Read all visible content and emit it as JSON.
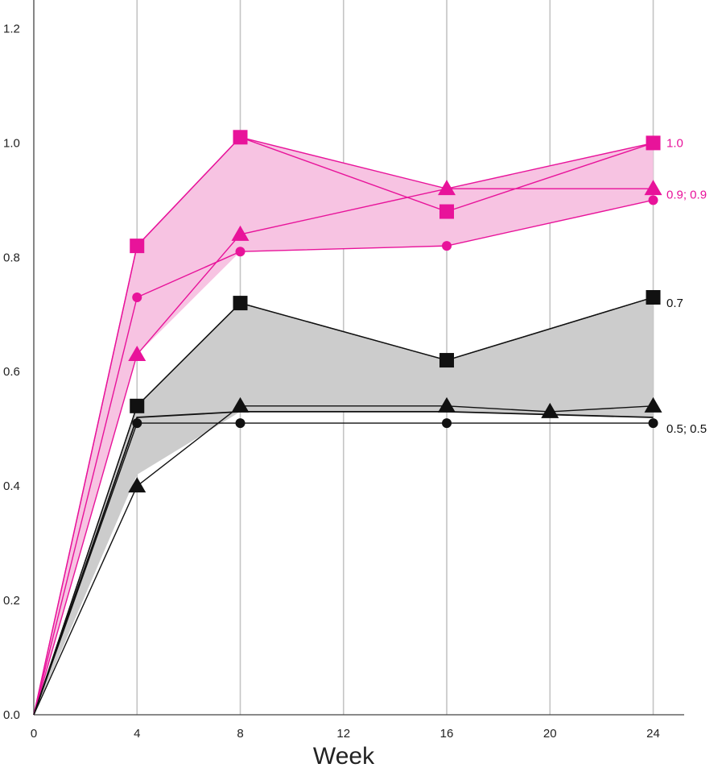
{
  "chart_data": {
    "type": "line",
    "title": "",
    "xlabel": "Week",
    "ylabel": "",
    "xlim": [
      0,
      25.2
    ],
    "ylim": [
      0,
      1.25
    ],
    "x_ticks": [
      0,
      4,
      8,
      12,
      16,
      20,
      24
    ],
    "x_tick_labels": [
      "0",
      "4",
      "8",
      "12",
      "16",
      "20",
      "24"
    ],
    "y_ticks": [
      0,
      0.2,
      0.4,
      0.6,
      0.8,
      1.0,
      1.2
    ],
    "y_tick_labels": [
      "0.0",
      "0.2",
      "0.4",
      "0.6",
      "0.8",
      "1.0",
      "1.2"
    ],
    "grid": "vertical",
    "colors": {
      "pink": "#e8139a",
      "pink_fill": "#f7c3e2",
      "black": "#111111",
      "gray_fill": "#cccccc",
      "grid": "#c4c4c4"
    },
    "bands": [
      {
        "color": "pink",
        "upper": [
          [
            0,
            0
          ],
          [
            4,
            0.82
          ],
          [
            8,
            1.01
          ],
          [
            16,
            0.92
          ],
          [
            24,
            1.0
          ]
        ],
        "lower": [
          [
            0,
            0
          ],
          [
            4,
            0.63
          ],
          [
            8,
            0.81
          ],
          [
            16,
            0.82
          ],
          [
            24,
            0.9
          ]
        ]
      },
      {
        "color": "gray",
        "upper": [
          [
            0,
            0
          ],
          [
            4,
            0.54
          ],
          [
            8,
            0.72
          ],
          [
            16,
            0.62
          ],
          [
            24,
            0.73
          ]
        ],
        "lower": [
          [
            0,
            0
          ],
          [
            4,
            0.42
          ],
          [
            8,
            0.53
          ],
          [
            16,
            0.53
          ],
          [
            24,
            0.52
          ]
        ]
      }
    ],
    "series": [
      {
        "color": "pink",
        "marker": "square",
        "x": [
          0,
          4,
          8,
          16,
          24
        ],
        "y": [
          0,
          0.82,
          1.01,
          0.88,
          1.0
        ]
      },
      {
        "color": "pink",
        "marker": "triangle",
        "x": [
          0,
          4,
          8,
          16,
          24
        ],
        "y": [
          0,
          0.63,
          0.84,
          0.92,
          0.92
        ]
      },
      {
        "color": "pink",
        "marker": "circle",
        "x": [
          0,
          4,
          8,
          16,
          24
        ],
        "y": [
          0,
          0.73,
          0.81,
          0.82,
          0.9
        ]
      },
      {
        "color": "black",
        "marker": "square",
        "x": [
          0,
          4,
          8,
          16,
          24
        ],
        "y": [
          0,
          0.54,
          0.72,
          0.62,
          0.73
        ]
      },
      {
        "color": "black",
        "marker": "triangle",
        "x": [
          0,
          4,
          8,
          16,
          20,
          24
        ],
        "y": [
          0,
          0.4,
          0.54,
          0.54,
          0.53,
          0.54
        ]
      },
      {
        "color": "black",
        "marker": "circle",
        "x": [
          0,
          4,
          8,
          16,
          24
        ],
        "y": [
          0,
          0.51,
          0.51,
          0.51,
          0.51
        ]
      }
    ],
    "lines": [
      {
        "color": "black",
        "x": [
          0,
          4,
          8,
          16,
          24
        ],
        "y": [
          0,
          0.52,
          0.53,
          0.53,
          0.52
        ]
      }
    ],
    "annotations": [
      {
        "text": "1.0",
        "y": 1.0,
        "color": "pink"
      },
      {
        "text": "0.9; 0.9",
        "y": 0.91,
        "color": "pink"
      },
      {
        "text": "0.7",
        "y": 0.72,
        "color": "black"
      },
      {
        "text": "0.5; 0.5",
        "y": 0.5,
        "color": "black"
      }
    ]
  }
}
